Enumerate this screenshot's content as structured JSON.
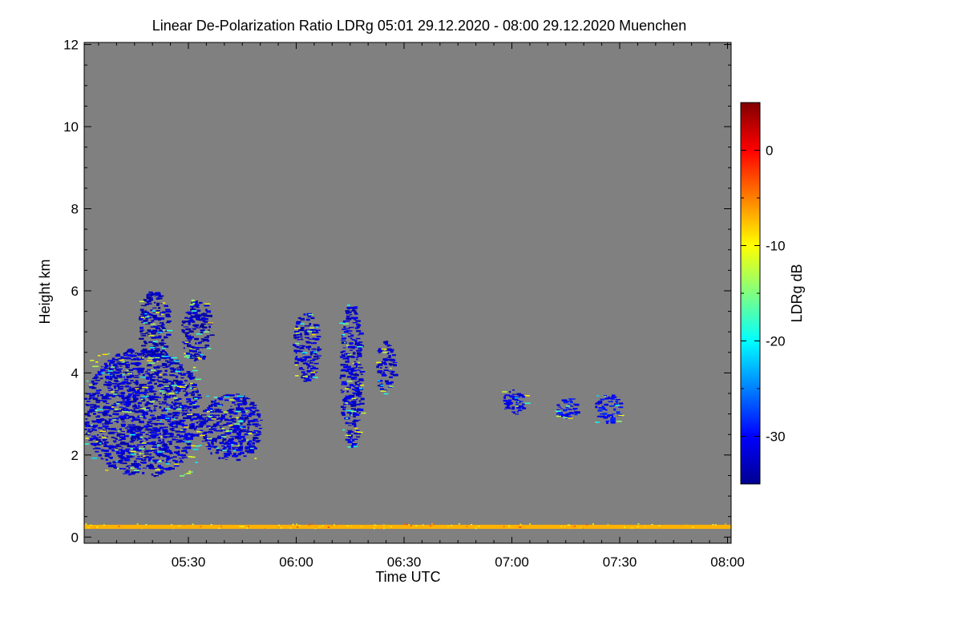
{
  "chart_data": {
    "type": "heatmap",
    "title": "Linear De-Polarization Ratio LDRg   05:01 29.12.2020 - 08:00 29.12.2020 Muenchen",
    "xlabel": "Time UTC",
    "ylabel": "Height km",
    "xlim_minutes": [
      301,
      481
    ],
    "ylim": [
      -0.15,
      12.05
    ],
    "x_ticks": [
      {
        "minutes": 330,
        "label": "05:30"
      },
      {
        "minutes": 360,
        "label": "06:00"
      },
      {
        "minutes": 390,
        "label": "06:30"
      },
      {
        "minutes": 420,
        "label": "07:00"
      },
      {
        "minutes": 450,
        "label": "07:30"
      },
      {
        "minutes": 480,
        "label": "08:00"
      }
    ],
    "y_ticks": [
      0,
      2,
      4,
      6,
      8,
      10,
      12
    ],
    "background_color": "#808080",
    "colorbar": {
      "label": "LDRg dB",
      "range": [
        -35,
        5
      ],
      "ticks": [
        0,
        -10,
        -20,
        -30
      ],
      "colormap": [
        "#00008f",
        "#0000ff",
        "#0080ff",
        "#00ffff",
        "#80ff80",
        "#ffff00",
        "#ff8000",
        "#ff0000",
        "#800000"
      ]
    },
    "features": [
      {
        "name": "low-cloud-main",
        "t0": 301,
        "t1": 333,
        "h0": 1.5,
        "h1": 4.6,
        "ldr": -32
      },
      {
        "name": "low-cloud-middle",
        "t0": 333,
        "t1": 350,
        "h0": 1.9,
        "h1": 3.5,
        "ldr": -32
      },
      {
        "name": "fallstreak-upper-1",
        "t0": 316,
        "t1": 324,
        "h0": 4.3,
        "h1": 6.0,
        "ldr": -33
      },
      {
        "name": "fallstreak-upper-2",
        "t0": 328,
        "t1": 336,
        "h0": 4.3,
        "h1": 5.8,
        "ldr": -33
      },
      {
        "name": "fallstreak-06-10",
        "t0": 359,
        "t1": 366,
        "h0": 3.8,
        "h1": 5.5,
        "ldr": -32
      },
      {
        "name": "fallstreak-06-20",
        "t0": 372,
        "t1": 378,
        "h0": 2.2,
        "h1": 5.7,
        "ldr": -32
      },
      {
        "name": "fallstreak-06-27",
        "t0": 382,
        "t1": 387,
        "h0": 3.5,
        "h1": 4.8,
        "ldr": -32
      },
      {
        "name": "cloud-07-00",
        "t0": 417,
        "t1": 424,
        "h0": 3.0,
        "h1": 3.6,
        "ldr": -31
      },
      {
        "name": "cloud-07-15",
        "t0": 432,
        "t1": 438,
        "h0": 2.9,
        "h1": 3.4,
        "ldr": -30
      },
      {
        "name": "cloud-07-25",
        "t0": 443,
        "t1": 450,
        "h0": 2.8,
        "h1": 3.5,
        "ldr": -30
      },
      {
        "name": "near-ground-layer",
        "t0": 301,
        "t1": 481,
        "h0": 0.2,
        "h1": 0.3,
        "ldr": -7
      }
    ]
  }
}
